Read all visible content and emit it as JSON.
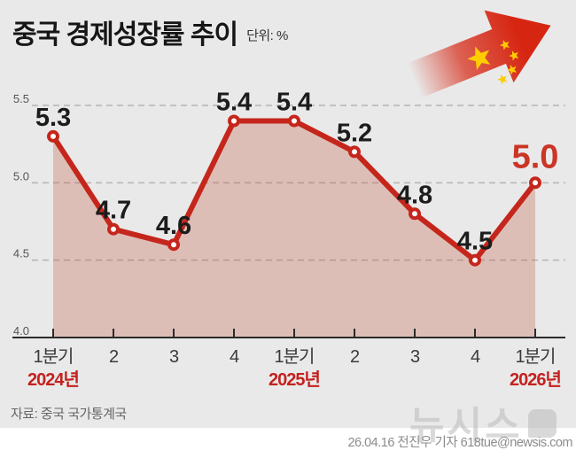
{
  "header": {
    "title": "중국 경제성장률 추이",
    "unit": "단위: %"
  },
  "icon": {
    "name": "china-flag-arrow",
    "red": "#d62612",
    "yellow": "#ffcc00"
  },
  "chart_data": {
    "type": "line",
    "title": "중국 경제성장률 추이",
    "unit": "%",
    "categories": [
      "1분기",
      "2",
      "3",
      "4",
      "1분기",
      "2",
      "3",
      "4",
      "1분기"
    ],
    "values": [
      5.3,
      4.7,
      4.6,
      5.4,
      5.4,
      5.2,
      4.8,
      4.5,
      5.0
    ],
    "year_labels": [
      {
        "index": 0,
        "label": "2024년"
      },
      {
        "index": 4,
        "label": "2025년"
      },
      {
        "index": 8,
        "label": "2026년"
      }
    ],
    "highlight_last": true,
    "ylim": [
      4.0,
      5.5
    ],
    "yticks": [
      4.0,
      4.5,
      5.0,
      5.5
    ],
    "grid": "horizontal-dashed",
    "area_fill": true,
    "legend": "none",
    "colors": {
      "line": "#c5261b",
      "marker_fill": "#ffffff",
      "area": "rgba(190,80,55,0.28)",
      "value_label": "#1c1c1c",
      "highlight_label": "#cb3526",
      "year_label": "#c32220",
      "axis": "#2b2b2b",
      "grid": "#b9b3b0",
      "tick_label": "#555555",
      "x_label": "#3a3a3a"
    }
  },
  "footer": {
    "source": "자료: 중국 국가통계국",
    "watermark": "뉴시스",
    "credit": "26.04.16 전진우 기자 618tue@newsis.com"
  }
}
